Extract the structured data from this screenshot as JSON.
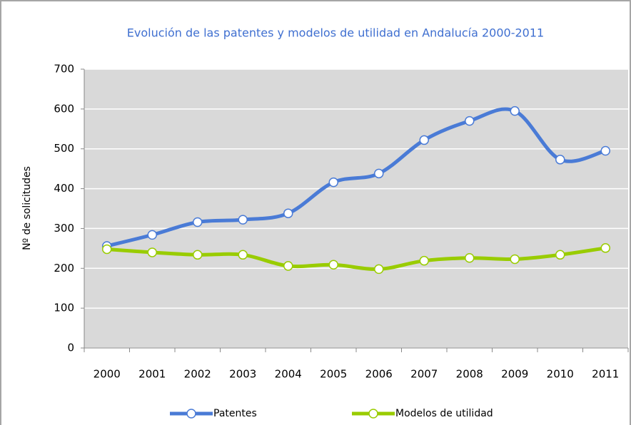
{
  "chart_data": {
    "type": "line",
    "title": "Evolución de las patentes y modelos de utilidad en Andalucía 2000-2011",
    "y_label": "Nº de solicitudes",
    "categories": [
      "2000",
      "2001",
      "2002",
      "2003",
      "2004",
      "2005",
      "2006",
      "2007",
      "2008",
      "2009",
      "2010",
      "2011"
    ],
    "series": [
      {
        "name": "Patentes",
        "color": "#4a7bd6",
        "values": [
          256,
          284,
          316,
          322,
          338,
          416,
          438,
          522,
          570,
          595,
          473,
          495
        ]
      },
      {
        "name": "Modelos de utilidad",
        "color": "#99cc00",
        "values": [
          248,
          240,
          234,
          234,
          206,
          209,
          198,
          219,
          226,
          223,
          234,
          251
        ]
      }
    ],
    "ylim": [
      0,
      700
    ],
    "yticks": [
      0,
      100,
      200,
      300,
      400,
      500,
      600,
      700
    ],
    "grid": true,
    "legend": "bottom"
  }
}
